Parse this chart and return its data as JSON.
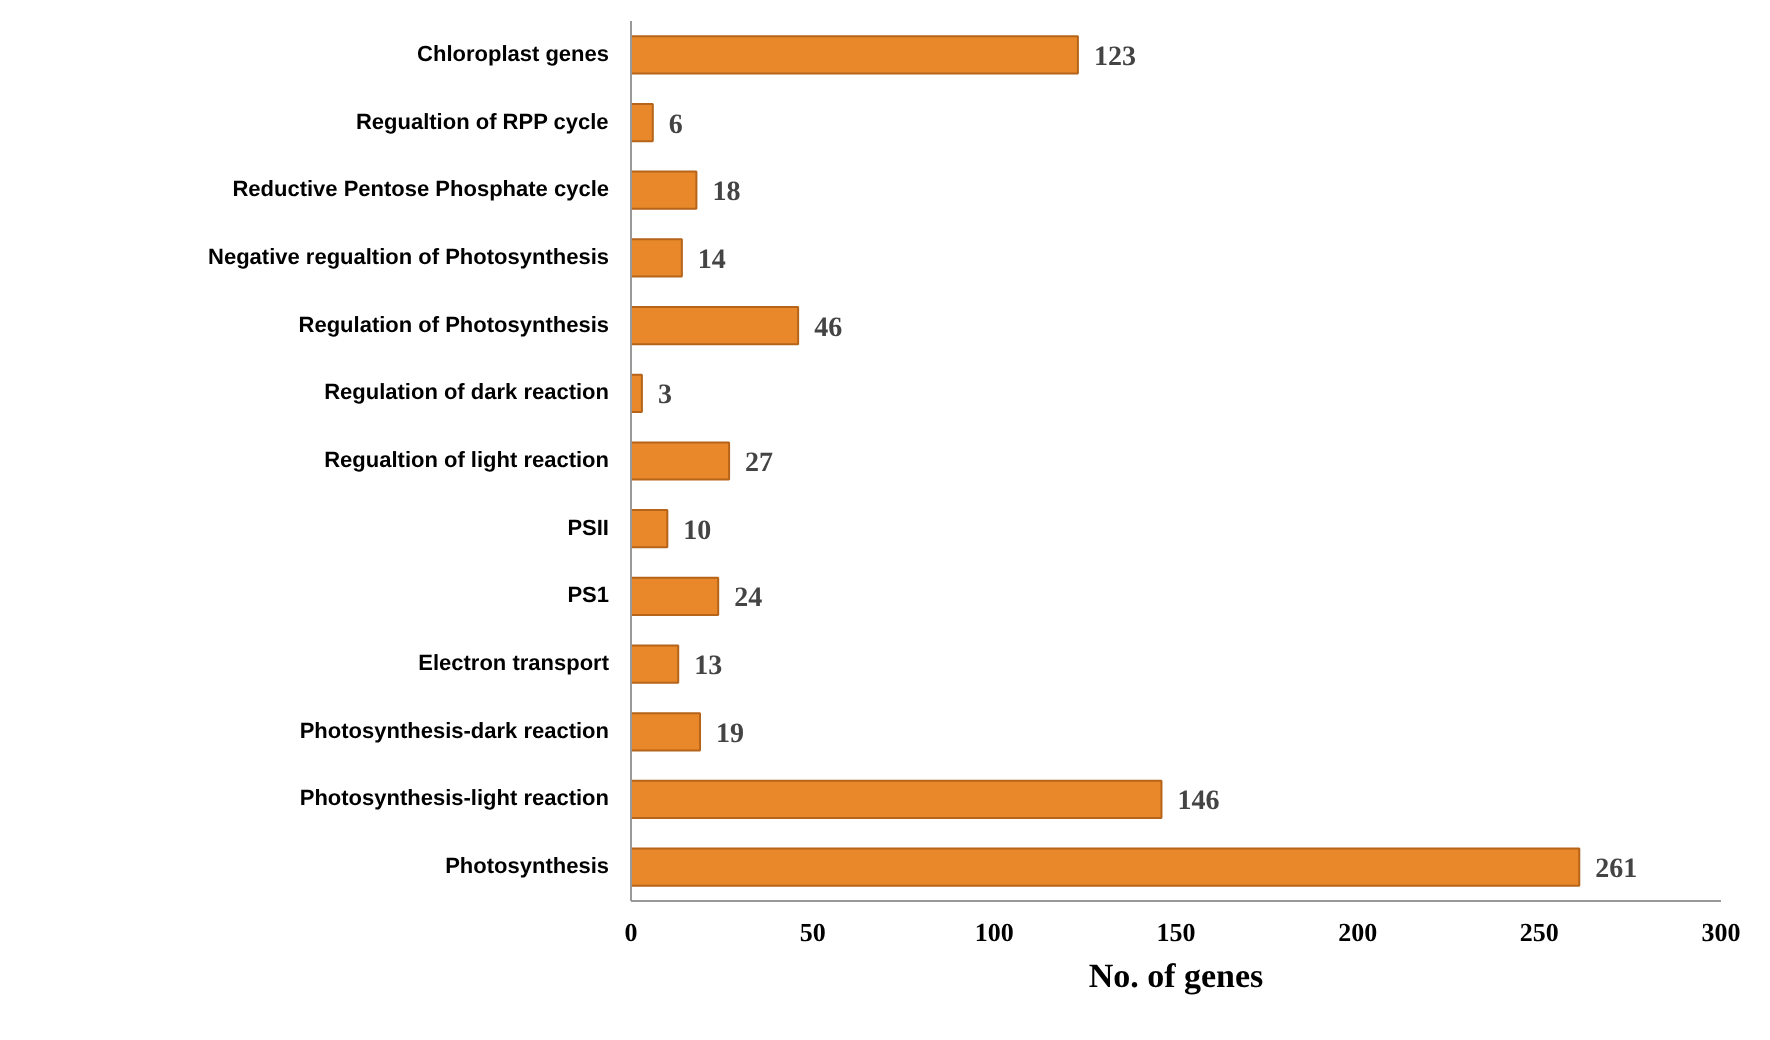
{
  "chart_data": {
    "type": "bar",
    "orientation": "horizontal",
    "xlabel": "No. of genes",
    "categories": [
      "Chloroplast genes",
      "Regualtion of RPP cycle",
      "Reductive Pentose Phosphate cycle",
      "Negative regualtion of Photosynthesis",
      "Regulation of Photosynthesis",
      "Regulation of dark reaction",
      "Regualtion of light reaction",
      "PSII",
      "PS1",
      "Electron transport",
      "Photosynthesis-dark reaction",
      "Photosynthesis-light reaction",
      "Photosynthesis"
    ],
    "values": [
      123,
      6,
      18,
      14,
      46,
      3,
      27,
      10,
      24,
      13,
      19,
      146,
      261
    ],
    "color": "#e8882a",
    "xlim": [
      0,
      300
    ],
    "xticks": [
      0,
      50,
      100,
      150,
      200,
      250,
      300
    ],
    "data_labels": true,
    "grid": false
  }
}
